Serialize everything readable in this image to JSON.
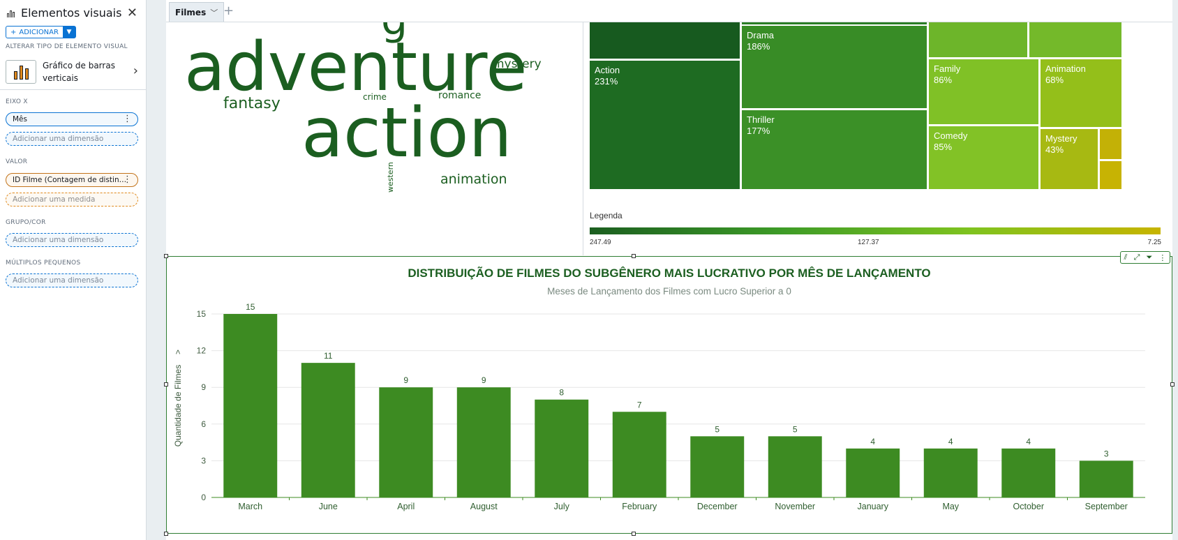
{
  "panel": {
    "title": "Elementos visuais",
    "add_label": "ADICIONAR",
    "change_type_label": "ALTERAR TIPO DE ELEMENTO VISUAL",
    "visual_type_name": "Gráfico de barras verticais",
    "x_axis_label": "EIXO X",
    "x_axis_field": "Mês",
    "x_axis_add": "Adicionar uma dimensão",
    "value_label": "VALOR",
    "value_field": "ID Filme (Contagem de distin…",
    "value_add": "Adicionar uma medida",
    "group_label": "GRUPO/COR",
    "group_add": "Adicionar uma dimensão",
    "small_multiples_label": "MÚLTIPLOS PEQUENOS",
    "small_multiples_add": "Adicionar uma dimensão"
  },
  "sheet_tabs": [
    {
      "label": "Filmes"
    }
  ],
  "wordcloud": {
    "words": [
      "adventure",
      "action",
      "fantasy",
      "mystery",
      "crime",
      "romance",
      "animation",
      "western"
    ]
  },
  "treemap": {
    "tiles": [
      {
        "name": "Action",
        "value": "231%"
      },
      {
        "name": "Drama",
        "value": "186%"
      },
      {
        "name": "Thriller",
        "value": "177%"
      },
      {
        "name": "Family",
        "value": "86%"
      },
      {
        "name": "Comedy",
        "value": "85%"
      },
      {
        "name": "Animation",
        "value": "68%"
      },
      {
        "name": "Mystery",
        "value": "43%"
      }
    ],
    "legend_title": "Legenda",
    "legend_min": "7.25",
    "legend_mid": "127.37",
    "legend_max": "247.49"
  },
  "colors": {
    "bar": "#3d8b22",
    "title": "#1b5e20"
  },
  "chart_data": {
    "type": "bar",
    "title": "DISTRIBUIÇÃO DE FILMES DO SUBGÊNERO MAIS LUCRATIVO POR MÊS DE LANÇAMENTO",
    "subtitle": "Meses de Lançamento dos Filmes com Lucro Superior a 0",
    "xlabel": "",
    "ylabel": "Quantidade de Filmes",
    "categories": [
      "March",
      "June",
      "April",
      "August",
      "July",
      "February",
      "December",
      "November",
      "January",
      "May",
      "October",
      "September"
    ],
    "values": [
      15,
      11,
      9,
      9,
      8,
      7,
      5,
      5,
      4,
      4,
      4,
      3
    ],
    "yticks": [
      0,
      3,
      6,
      9,
      12,
      15
    ],
    "ylim": [
      0,
      15
    ],
    "grid": true
  }
}
